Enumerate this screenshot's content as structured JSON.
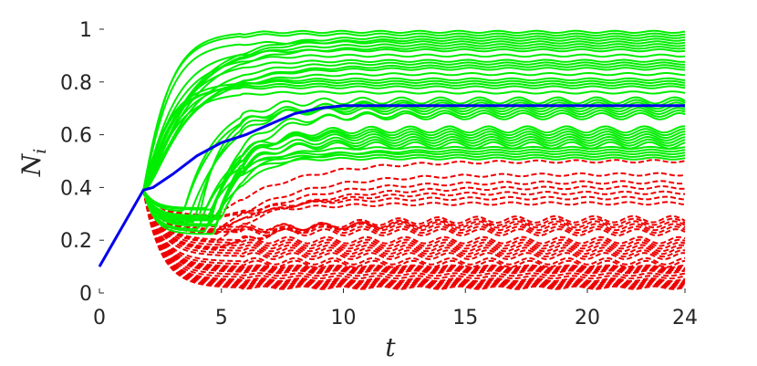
{
  "chart_data": {
    "type": "line",
    "title": "",
    "xlabel": "t",
    "ylabel": "N",
    "ylabel_subscript": "i",
    "xlim": [
      0,
      24
    ],
    "ylim": [
      0,
      1
    ],
    "xticks": [
      0,
      5,
      10,
      15,
      20,
      24
    ],
    "yticks": [
      0,
      0.2,
      0.4,
      0.6,
      0.8,
      1
    ],
    "xtick_labels": [
      "0",
      "5",
      "10",
      "15",
      "20",
      "24"
    ],
    "ytick_labels": [
      "0",
      "0.2",
      "0.4",
      "0.6",
      "0.8",
      "1"
    ],
    "grid": false,
    "legend": "none",
    "colors": {
      "upper_group": "#00ee00",
      "lower_group": "#ee0000",
      "mean": "#0000ee"
    },
    "branch_point": {
      "t": 1.8,
      "N": 0.39
    },
    "upper_group": {
      "style": "solid",
      "final_values": [
        0.99,
        0.98,
        0.97,
        0.96,
        0.95,
        0.94,
        0.93,
        0.92,
        0.9,
        0.88,
        0.87,
        0.86,
        0.85,
        0.83,
        0.81,
        0.8,
        0.79,
        0.78,
        0.76,
        0.73,
        0.72,
        0.71,
        0.7,
        0.69,
        0.68,
        0.67,
        0.62,
        0.61,
        0.6,
        0.59,
        0.58,
        0.57,
        0.56,
        0.55,
        0.54,
        0.53,
        0.52,
        0.51
      ]
    },
    "lower_group": {
      "style": "dashed",
      "final_values": [
        0.5,
        0.45,
        0.42,
        0.4,
        0.38,
        0.36,
        0.34,
        0.28,
        0.27,
        0.26,
        0.25,
        0.24,
        0.23,
        0.2,
        0.19,
        0.18,
        0.17,
        0.16,
        0.15,
        0.14,
        0.12,
        0.11,
        0.1,
        0.095,
        0.09,
        0.085,
        0.08,
        0.07,
        0.06,
        0.05,
        0.045,
        0.04,
        0.035,
        0.03,
        0.025,
        0.02
      ]
    },
    "mean_series": {
      "name": "",
      "style": "solid",
      "x": [
        0,
        1.8,
        2.2,
        3,
        4,
        5,
        6,
        7,
        8,
        9,
        10,
        12,
        15,
        20,
        24
      ],
      "y": [
        0.1,
        0.39,
        0.4,
        0.45,
        0.52,
        0.57,
        0.6,
        0.64,
        0.68,
        0.7,
        0.71,
        0.71,
        0.71,
        0.71,
        0.71
      ]
    }
  }
}
